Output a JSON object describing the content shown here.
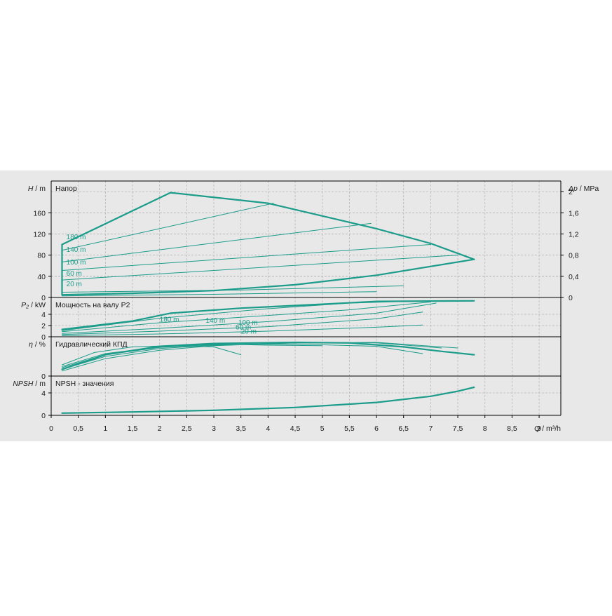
{
  "colors": {
    "background": "#e8e8e8",
    "curve": "#1c9c8a",
    "grid": "#b8b8b8",
    "axis": "#000000"
  },
  "chart_data": {
    "type": "line",
    "x": {
      "label_var": "Q",
      "label_unit": "m³/h",
      "label_sep": " / ",
      "min": 0,
      "max": 9.4,
      "ticks": [
        0,
        0.5,
        1,
        1.5,
        2,
        2.5,
        3,
        3.5,
        4,
        4.5,
        5,
        5.5,
        6,
        6.5,
        7,
        7.5,
        8,
        8.5,
        9
      ],
      "tick_labels": [
        "0",
        "0,5",
        "1",
        "1,5",
        "2",
        "2,5",
        "3",
        "3,5",
        "4",
        "4,5",
        "5",
        "5,5",
        "6",
        "6,5",
        "7",
        "7,5",
        "8",
        "8,5",
        "9"
      ]
    },
    "panels": [
      {
        "id": "head",
        "title": "Напор",
        "ylabel_var": "H",
        "ylabel_unit": "m",
        "ylabel_sep": " / ",
        "ymin": 0,
        "ymax": 220,
        "yticks": [
          0,
          40,
          80,
          120,
          160
        ],
        "ytick_labels": [
          "0",
          "40",
          "80",
          "120",
          "160"
        ],
        "right_axis": {
          "label_var": "Δp",
          "label_unit": "MPa",
          "label_sep": " / ",
          "ticks": [
            0,
            0.4,
            0.8,
            1.2,
            1.6,
            2.0
          ],
          "tick_labels": [
            "0",
            "0,4",
            "0,8",
            "1,2",
            "1,6",
            "2"
          ],
          "scale": 100
        },
        "series": [
          {
            "label": "",
            "width": 2.2,
            "points": [
              [
                0.2,
                100
              ],
              [
                2.2,
                198
              ],
              [
                4,
                178
              ],
              [
                6,
                130
              ],
              [
                7,
                102
              ],
              [
                7.8,
                72
              ]
            ]
          },
          {
            "label": "",
            "width": 2.2,
            "points": [
              [
                0.2,
                5
              ],
              [
                1.5,
                8
              ],
              [
                3,
                13
              ],
              [
                4.5,
                24
              ],
              [
                6,
                42
              ],
              [
                7.8,
                72
              ]
            ]
          },
          {
            "label": "",
            "width": 2.2,
            "points": [
              [
                0.2,
                100
              ],
              [
                0.2,
                5
              ]
            ]
          },
          {
            "label": "",
            "width": 1,
            "points": [
              [
                0.2,
                89
              ],
              [
                4.1,
                178
              ]
            ]
          },
          {
            "label": "",
            "width": 1,
            "points": [
              [
                0.2,
                67
              ],
              [
                5.9,
                140
              ]
            ]
          },
          {
            "label": "",
            "width": 1,
            "points": [
              [
                0.2,
                51
              ],
              [
                7.0,
                100
              ]
            ]
          },
          {
            "label": "",
            "width": 1,
            "points": [
              [
                0.2,
                33
              ],
              [
                7.5,
                80
              ]
            ]
          },
          {
            "label": "",
            "width": 1,
            "points": [
              [
                0.2,
                10
              ],
              [
                3.5,
                14
              ],
              [
                6.5,
                22
              ]
            ]
          },
          {
            "label": "",
            "width": 1,
            "points": [
              [
                0.2,
                3
              ],
              [
                3,
                6
              ],
              [
                6,
                11
              ]
            ]
          }
        ],
        "labels": [
          {
            "text": "180 m",
            "x": 0.28,
            "y": 110
          },
          {
            "text": "140 m",
            "x": 0.28,
            "y": 86
          },
          {
            "text": "100 m",
            "x": 0.28,
            "y": 62
          },
          {
            "text": "60 m",
            "x": 0.28,
            "y": 41
          },
          {
            "text": "20 m",
            "x": 0.28,
            "y": 21
          }
        ]
      },
      {
        "id": "power",
        "title": "Мощность на валу P2",
        "ylabel_var": "P₂",
        "ylabel_unit": "kW",
        "ylabel_sep": " / ",
        "ymin": 0,
        "ymax": 7,
        "yticks": [
          0,
          2,
          4
        ],
        "ytick_labels": [
          "0",
          "2",
          "4"
        ],
        "series": [
          {
            "label": "",
            "width": 2.2,
            "points": [
              [
                0.2,
                1.3
              ],
              [
                1.5,
                2.8
              ],
              [
                2.2,
                4.2
              ],
              [
                3.5,
                5.1
              ],
              [
                5,
                5.8
              ],
              [
                6,
                6.3
              ],
              [
                7.8,
                6.4
              ]
            ]
          },
          {
            "label": "",
            "width": 1,
            "points": [
              [
                0.2,
                1.1
              ],
              [
                2,
                3.3
              ],
              [
                4,
                5.0
              ],
              [
                5.5,
                6.0
              ],
              [
                6.5,
                6.3
              ]
            ]
          },
          {
            "label": "",
            "width": 1,
            "points": [
              [
                0.2,
                0.9
              ],
              [
                2,
                2.5
              ],
              [
                4,
                3.8
              ],
              [
                5.5,
                4.8
              ],
              [
                7.0,
                6.2
              ]
            ]
          },
          {
            "label": "",
            "width": 1,
            "points": [
              [
                0.2,
                0.6
              ],
              [
                2,
                1.5
              ],
              [
                4,
                2.7
              ],
              [
                6,
                4.2
              ],
              [
                7.1,
                6.0
              ]
            ]
          },
          {
            "label": "",
            "width": 1,
            "points": [
              [
                0.2,
                0.4
              ],
              [
                2,
                1.0
              ],
              [
                4,
                1.8
              ],
              [
                6,
                3.2
              ],
              [
                6.85,
                4.4
              ]
            ]
          },
          {
            "label": "",
            "width": 1,
            "points": [
              [
                0.2,
                0.2
              ],
              [
                2,
                0.5
              ],
              [
                4,
                1.0
              ],
              [
                6,
                1.7
              ],
              [
                6.85,
                2.1
              ]
            ]
          }
        ],
        "labels": [
          {
            "text": "180 m",
            "x": 2.0,
            "y": 2.7
          },
          {
            "text": "140 m",
            "x": 2.85,
            "y": 2.5
          },
          {
            "text": "100 m",
            "x": 3.45,
            "y": 2.1
          },
          {
            "text": "60 m",
            "x": 3.4,
            "y": 1.3
          },
          {
            "text": "20 m",
            "x": 3.5,
            "y": 0.55
          }
        ]
      },
      {
        "id": "efficiency",
        "title": "Гидравлический КПД",
        "ylabel_var": "η",
        "ylabel_unit": "%",
        "ylabel_sep": " / ",
        "ymin": 0,
        "ymax": 70,
        "yticks": [
          0
        ],
        "ytick_labels": [
          "0"
        ],
        "series": [
          {
            "label": "",
            "width": 2.2,
            "points": [
              [
                0.2,
                12
              ],
              [
                1,
                38
              ],
              [
                2,
                53
              ],
              [
                3,
                58
              ],
              [
                4.5,
                60
              ],
              [
                5.5,
                59
              ],
              [
                6.5,
                52
              ],
              [
                7.2,
                44
              ],
              [
                7.8,
                38
              ]
            ]
          },
          {
            "label": "",
            "width": 1,
            "points": [
              [
                0.2,
                20
              ],
              [
                0.8,
                42
              ],
              [
                1.5,
                52
              ],
              [
                2.2,
                54
              ],
              [
                3,
                52
              ],
              [
                3.5,
                38
              ]
            ]
          },
          {
            "label": "",
            "width": 1,
            "points": [
              [
                0.2,
                17
              ],
              [
                1,
                40
              ],
              [
                2,
                52
              ],
              [
                3,
                57
              ],
              [
                4,
                55
              ],
              [
                5,
                54
              ]
            ]
          },
          {
            "label": "",
            "width": 1,
            "points": [
              [
                0.2,
                15
              ],
              [
                1,
                38
              ],
              [
                2,
                51
              ],
              [
                3,
                56
              ],
              [
                4.5,
                57
              ],
              [
                6,
                53
              ],
              [
                6.85,
                40
              ]
            ]
          },
          {
            "label": "",
            "width": 1,
            "points": [
              [
                0.2,
                12
              ],
              [
                1,
                35
              ],
              [
                2,
                49
              ],
              [
                3,
                55
              ],
              [
                4.5,
                59
              ],
              [
                6,
                59
              ],
              [
                7.2,
                50
              ]
            ]
          },
          {
            "label": "",
            "width": 1,
            "points": [
              [
                0.2,
                9
              ],
              [
                1,
                31
              ],
              [
                2,
                46
              ],
              [
                3,
                54
              ],
              [
                4.5,
                59
              ],
              [
                6,
                60
              ],
              [
                7.5,
                50
              ]
            ]
          }
        ],
        "labels": []
      },
      {
        "id": "npsh",
        "title": "NPSH - значения",
        "ylabel_var": "NPSH",
        "ylabel_unit": "m",
        "ylabel_sep": " / ",
        "ymin": 0,
        "ymax": 7,
        "yticks": [
          0,
          4
        ],
        "ytick_labels": [
          "0",
          "4"
        ],
        "series": [
          {
            "label": "",
            "width": 2.2,
            "points": [
              [
                0.2,
                0.4
              ],
              [
                1.5,
                0.6
              ],
              [
                3,
                0.9
              ],
              [
                4.5,
                1.4
              ],
              [
                6,
                2.3
              ],
              [
                7,
                3.4
              ],
              [
                7.5,
                4.3
              ],
              [
                7.8,
                5.0
              ]
            ]
          }
        ],
        "labels": []
      }
    ]
  }
}
